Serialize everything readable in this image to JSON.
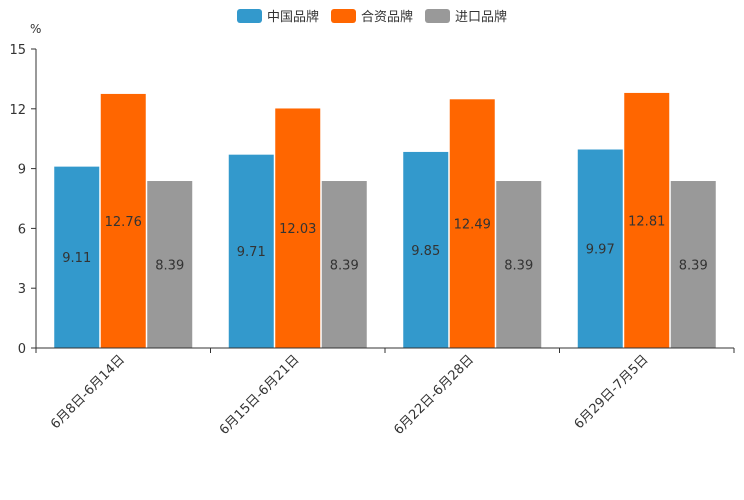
{
  "chart_data": {
    "type": "bar",
    "title": "",
    "xlabel": "",
    "ylabel": "%",
    "ylim": [
      0,
      15
    ],
    "yticks": [
      0,
      3,
      6,
      9,
      12,
      15
    ],
    "categories": [
      "6月8日-6月14日",
      "6月15日-6月21日",
      "6月22日-6月28日",
      "6月29日-7月5日"
    ],
    "series": [
      {
        "name": "中国品牌",
        "color": "#3399CC",
        "values": [
          9.11,
          9.71,
          9.85,
          9.97
        ]
      },
      {
        "name": "合资品牌",
        "color": "#FF6600",
        "values": [
          12.76,
          12.03,
          12.49,
          12.81
        ]
      },
      {
        "name": "进口品牌",
        "color": "#999999",
        "values": [
          8.39,
          8.39,
          8.39,
          8.39
        ]
      }
    ],
    "legend_position": "top-center",
    "grid": false
  }
}
